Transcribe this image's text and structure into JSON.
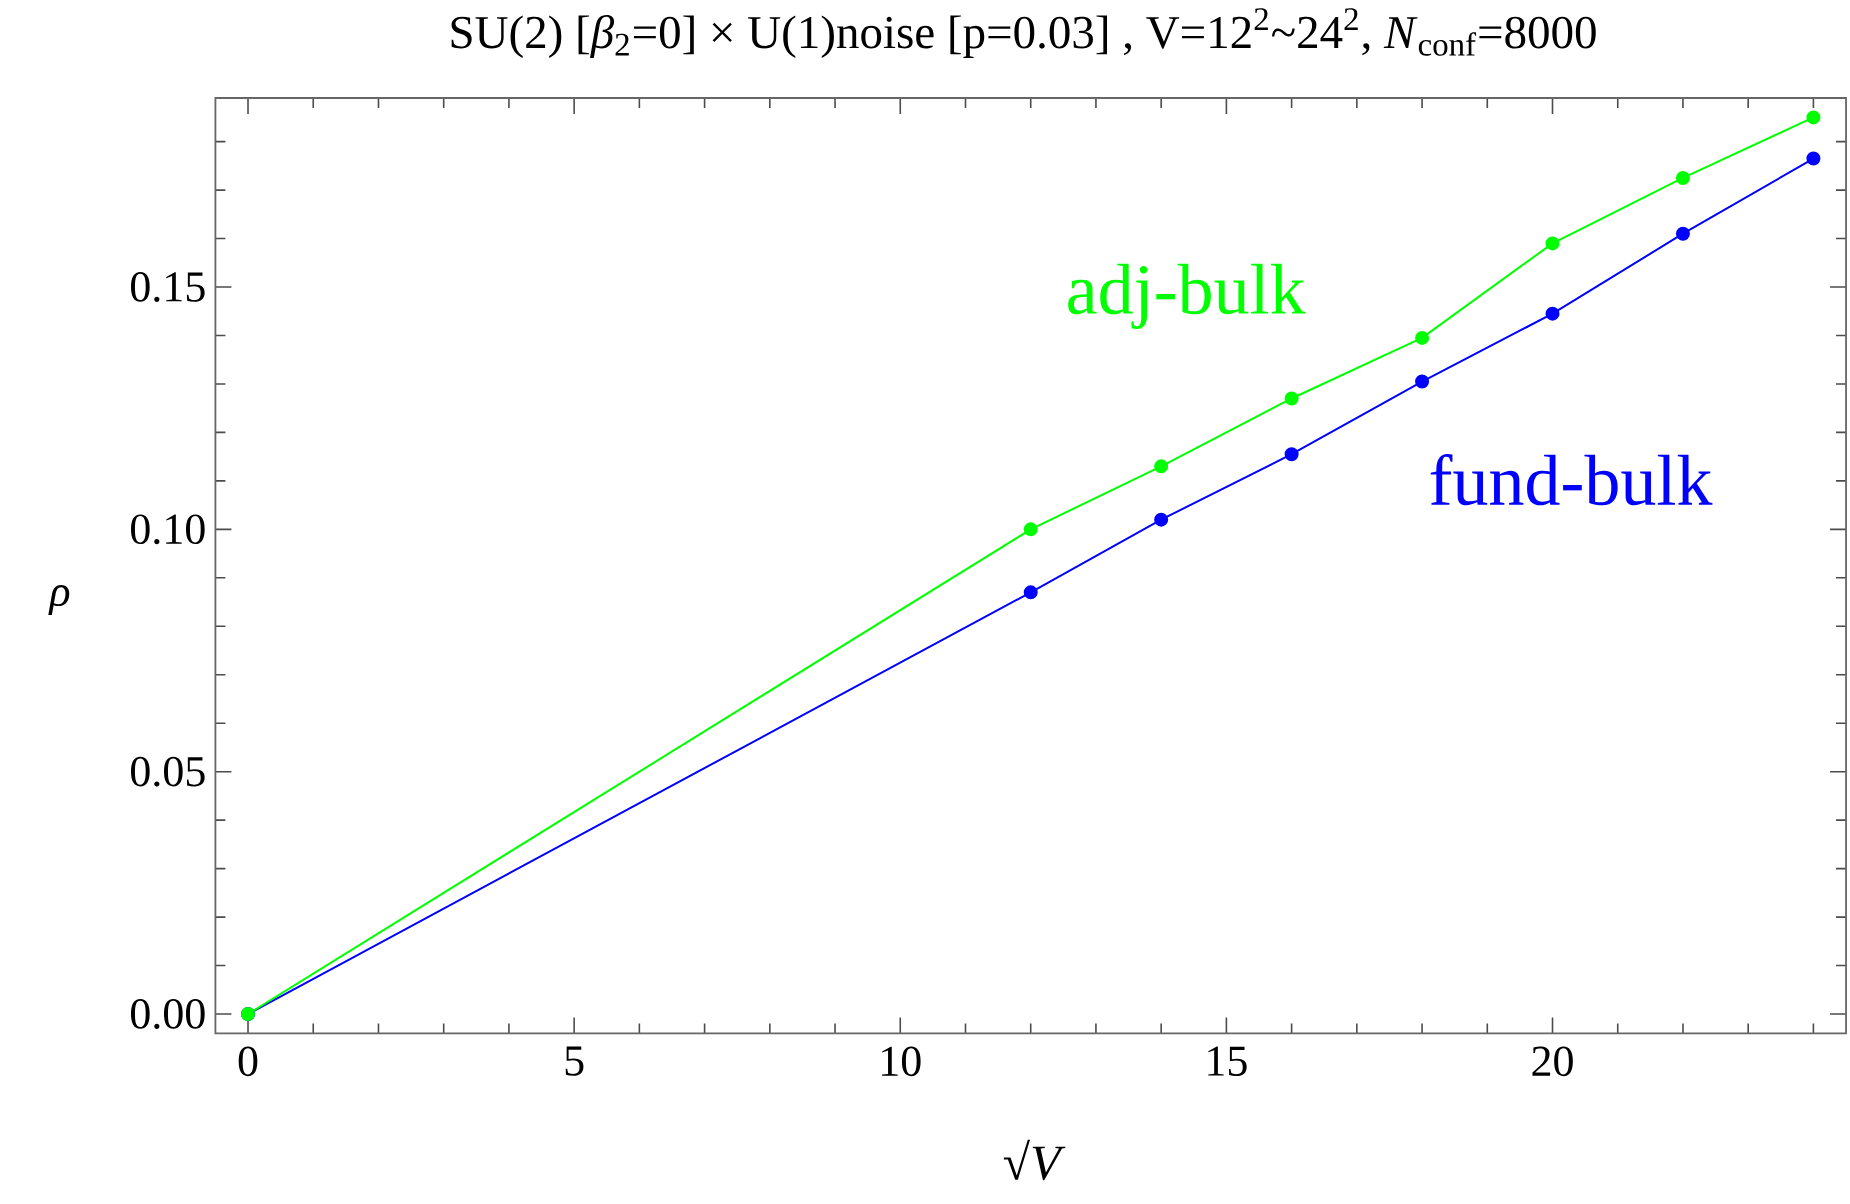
{
  "chart_data": {
    "type": "line",
    "title": "SU(2) [*β*$_{2}$=0] × U(1)noise [p=0.03] , V=12$^{2}$~24$^{2}$, *N*$_{conf}$=8000",
    "xlabel": "√*V*",
    "ylabel": "ρ",
    "x": [
      0,
      12,
      14,
      16,
      18,
      20,
      22,
      24
    ],
    "series": [
      {
        "name": "adj-bulk",
        "color": "#00ff00",
        "values": [
          0,
          0.1,
          0.113,
          0.127,
          0.1395,
          0.159,
          0.1725,
          0.185
        ]
      },
      {
        "name": "fund-bulk",
        "color": "#0000ff",
        "values": [
          0,
          0.087,
          0.102,
          0.1155,
          0.1305,
          0.1445,
          0.161,
          0.1765
        ]
      }
    ],
    "xlim": [
      -0.5,
      24.5
    ],
    "ylim": [
      -0.004,
      0.189
    ],
    "xticks": [
      0,
      5,
      10,
      15,
      20
    ],
    "yticks": [
      {
        "value": 0,
        "label": "0.00"
      },
      {
        "value": 0.05,
        "label": "0.05"
      },
      {
        "value": 0.1,
        "label": "0.10"
      },
      {
        "value": 0.15,
        "label": "0.15"
      }
    ],
    "marker": "circle",
    "line_style": "solid",
    "grid": false,
    "legend": false
  }
}
